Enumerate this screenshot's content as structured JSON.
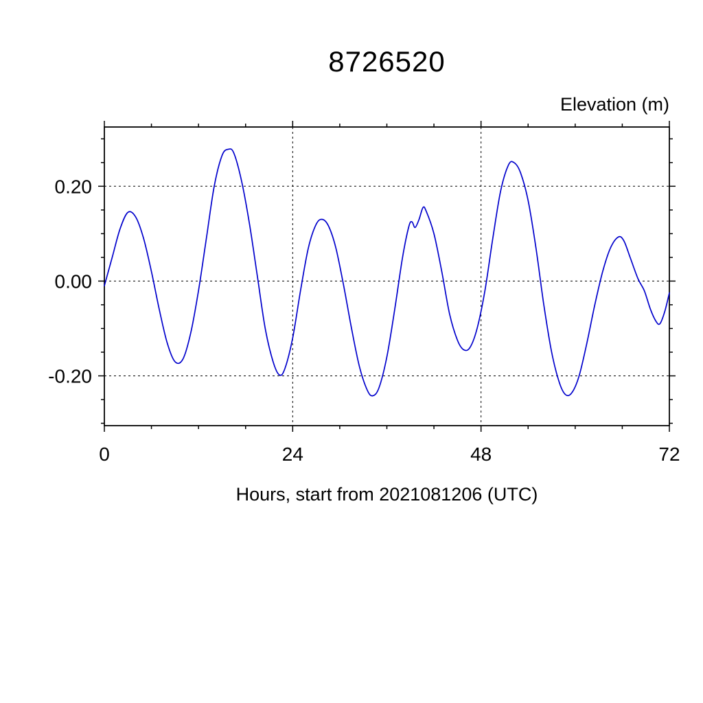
{
  "chart": {
    "title": "8726520",
    "right_label": "Elevation (m)",
    "x_label": "Hours, start from 2021081206 (UTC)"
  },
  "chart_data": {
    "type": "line",
    "title": "8726520",
    "xlabel": "Hours, start from 2021081206 (UTC)",
    "ylabel": "Elevation (m)",
    "xlim": [
      0,
      72
    ],
    "ylim": [
      -0.305,
      0.325
    ],
    "x_major_ticks": [
      0,
      24,
      48,
      72
    ],
    "x_tick_labels": [
      "0",
      "24",
      "48",
      "72"
    ],
    "x_minor_step": 6,
    "y_major_ticks": [
      0.2,
      0.0,
      -0.2
    ],
    "y_tick_labels": [
      "0.20",
      "0.00",
      "-0.20"
    ],
    "y_minor_step": 0.05,
    "grid_x": [
      24,
      48
    ],
    "grid_y": [
      0.2,
      0.0,
      -0.2
    ],
    "line_color": "#0000cc",
    "axis_color": "#000000",
    "series": [
      {
        "name": "elevation",
        "points": [
          [
            0,
            -0.01
          ],
          [
            1,
            0.05
          ],
          [
            2,
            0.11
          ],
          [
            3,
            0.145
          ],
          [
            4,
            0.135
          ],
          [
            5,
            0.09
          ],
          [
            6,
            0.02
          ],
          [
            7,
            -0.06
          ],
          [
            8,
            -0.13
          ],
          [
            9,
            -0.17
          ],
          [
            10,
            -0.165
          ],
          [
            11,
            -0.11
          ],
          [
            12,
            -0.02
          ],
          [
            13,
            0.09
          ],
          [
            14,
            0.2
          ],
          [
            15,
            0.265
          ],
          [
            15.8,
            0.278
          ],
          [
            16.5,
            0.27
          ],
          [
            17.5,
            0.21
          ],
          [
            18.5,
            0.12
          ],
          [
            19.5,
            0.01
          ],
          [
            20.5,
            -0.1
          ],
          [
            21.5,
            -0.17
          ],
          [
            22.3,
            -0.198
          ],
          [
            23,
            -0.185
          ],
          [
            24,
            -0.12
          ],
          [
            25,
            -0.02
          ],
          [
            26,
            0.07
          ],
          [
            27,
            0.12
          ],
          [
            27.8,
            0.13
          ],
          [
            28.6,
            0.115
          ],
          [
            29.5,
            0.07
          ],
          [
            30.5,
            -0.01
          ],
          [
            31.5,
            -0.1
          ],
          [
            32.5,
            -0.18
          ],
          [
            33.5,
            -0.23
          ],
          [
            34.2,
            -0.242
          ],
          [
            35,
            -0.225
          ],
          [
            36,
            -0.16
          ],
          [
            37,
            -0.06
          ],
          [
            38,
            0.05
          ],
          [
            38.8,
            0.115
          ],
          [
            39.2,
            0.125
          ],
          [
            39.6,
            0.113
          ],
          [
            40.1,
            0.13
          ],
          [
            40.6,
            0.155
          ],
          [
            41,
            0.148
          ],
          [
            42,
            0.1
          ],
          [
            43,
            0.02
          ],
          [
            44,
            -0.07
          ],
          [
            45,
            -0.125
          ],
          [
            45.8,
            -0.145
          ],
          [
            46.6,
            -0.14
          ],
          [
            47.5,
            -0.1
          ],
          [
            48.5,
            -0.02
          ],
          [
            49.5,
            0.09
          ],
          [
            50.5,
            0.19
          ],
          [
            51.5,
            0.245
          ],
          [
            52.2,
            0.25
          ],
          [
            53,
            0.23
          ],
          [
            54,
            0.17
          ],
          [
            55,
            0.07
          ],
          [
            56,
            -0.05
          ],
          [
            57,
            -0.15
          ],
          [
            58,
            -0.215
          ],
          [
            58.8,
            -0.24
          ],
          [
            59.6,
            -0.235
          ],
          [
            60.5,
            -0.2
          ],
          [
            61.5,
            -0.13
          ],
          [
            62.5,
            -0.05
          ],
          [
            63.5,
            0.02
          ],
          [
            64.5,
            0.07
          ],
          [
            65.5,
            0.093
          ],
          [
            66.2,
            0.085
          ],
          [
            67,
            0.05
          ],
          [
            68,
            0.005
          ],
          [
            68.8,
            -0.02
          ],
          [
            69.6,
            -0.06
          ],
          [
            70.3,
            -0.085
          ],
          [
            70.8,
            -0.09
          ],
          [
            71.4,
            -0.065
          ],
          [
            72,
            -0.025
          ]
        ]
      }
    ]
  }
}
